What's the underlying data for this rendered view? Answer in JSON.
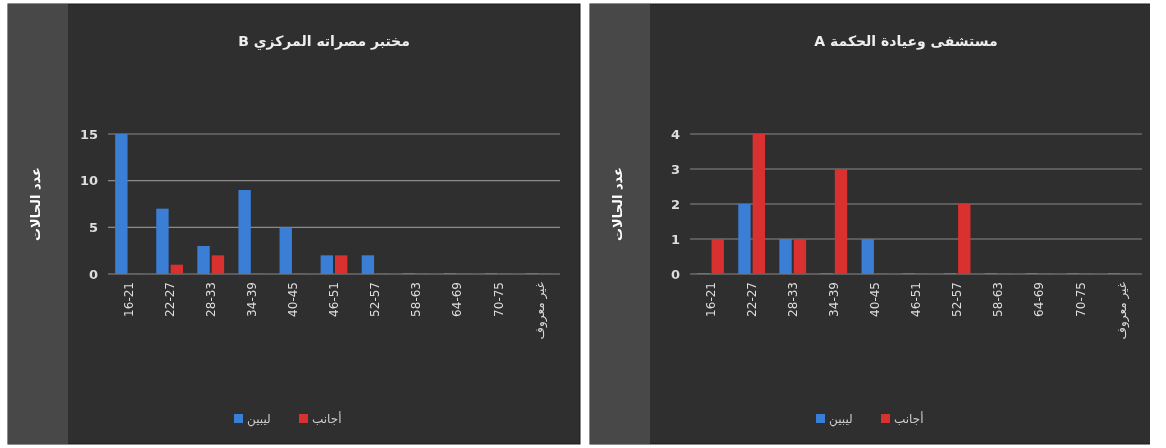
{
  "chart_data": [
    {
      "type": "bar",
      "title": "مختبر مصراته المركزي B",
      "ylabel": "عدد الحالات",
      "categories": [
        "16-21",
        "22-27",
        "28-33",
        "34-39",
        "40-45",
        "46-51",
        "52-57",
        "58-63",
        "64-69",
        "70-75",
        "غير معروف"
      ],
      "series": [
        {
          "name": "ليبين",
          "color": "#3a7fd5",
          "values": [
            15,
            7,
            3,
            9,
            5,
            2,
            2,
            0,
            0,
            0,
            0
          ]
        },
        {
          "name": "أجانب",
          "color": "#d93030",
          "values": [
            0,
            1,
            2,
            0,
            0,
            2,
            0,
            0,
            0,
            0,
            0
          ]
        }
      ],
      "ylim": [
        0,
        15
      ],
      "yticks": [
        0,
        5,
        10,
        15
      ],
      "grid": "y",
      "legend": "bottom"
    },
    {
      "type": "bar",
      "title": "مستشفى وعيادة الحكمة A",
      "ylabel": "عدد الحالات",
      "categories": [
        "16-21",
        "22-27",
        "28-33",
        "34-39",
        "40-45",
        "46-51",
        "52-57",
        "58-63",
        "64-69",
        "70-75",
        "غير معروف"
      ],
      "series": [
        {
          "name": "ليبين",
          "color": "#3a7fd5",
          "values": [
            0,
            2,
            1,
            0,
            1,
            0,
            0,
            0,
            0,
            0,
            0
          ]
        },
        {
          "name": "أجانب",
          "color": "#d93030",
          "values": [
            1,
            4,
            1,
            3,
            0,
            0,
            2,
            0,
            0,
            0,
            0
          ]
        }
      ],
      "ylim": [
        0,
        4
      ],
      "yticks": [
        0,
        1,
        2,
        3,
        4
      ],
      "grid": "y",
      "legend": "bottom"
    }
  ]
}
